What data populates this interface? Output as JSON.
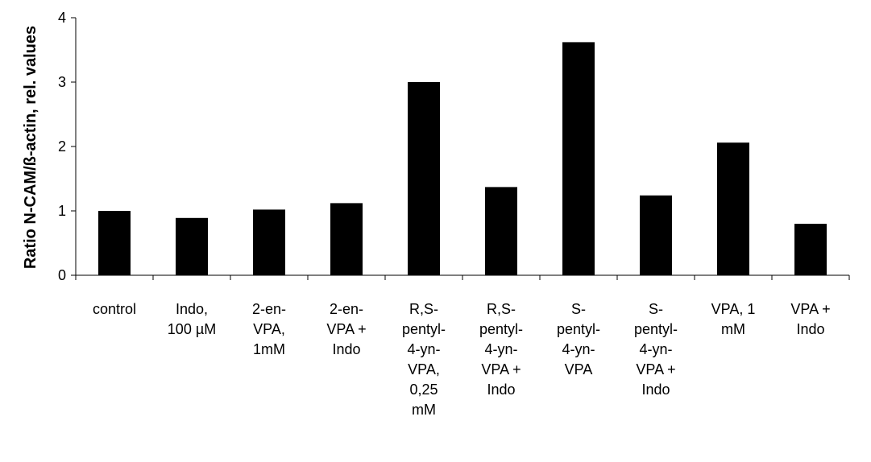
{
  "chart_data": {
    "type": "bar",
    "title": "",
    "xlabel": "",
    "ylabel": "Ratio N-CAM/ß-actin, rel. values",
    "ylim": [
      0,
      4
    ],
    "yticks": [
      "0",
      "1",
      "2",
      "3",
      "4"
    ],
    "categories": [
      "control",
      "Indo, 100 µM",
      "2-en-VPA, 1mM",
      "2-en-VPA + Indo",
      "R,S-pentyl-4-yn-VPA, 0,25 mM",
      "R,S-pentyl-4-yn-VPA + Indo",
      "S-pentyl-4-yn-VPA",
      "S-pentyl-4-yn-VPA + Indo",
      "VPA, 1 mM",
      "VPA + Indo"
    ],
    "category_label_lines": [
      [
        "control"
      ],
      [
        "Indo,",
        "100 µM"
      ],
      [
        "2-en-",
        "VPA,",
        "1mM"
      ],
      [
        "2-en-",
        "VPA +",
        "Indo"
      ],
      [
        "R,S-",
        "pentyl-",
        "4-yn-",
        "VPA,",
        "0,25",
        "mM"
      ],
      [
        "R,S-",
        "pentyl-",
        "4-yn-",
        "VPA +",
        "Indo"
      ],
      [
        "S-",
        "pentyl-",
        "4-yn-",
        "VPA"
      ],
      [
        "S-",
        "pentyl-",
        "4-yn-",
        "VPA +",
        "Indo"
      ],
      [
        "VPA, 1",
        "mM"
      ],
      [
        "VPA +",
        "Indo"
      ]
    ],
    "values": [
      1.0,
      0.89,
      1.02,
      1.12,
      3.0,
      1.37,
      3.62,
      1.24,
      2.06,
      0.8
    ],
    "bar_color": "#000000",
    "grid": false,
    "legend": "none"
  }
}
